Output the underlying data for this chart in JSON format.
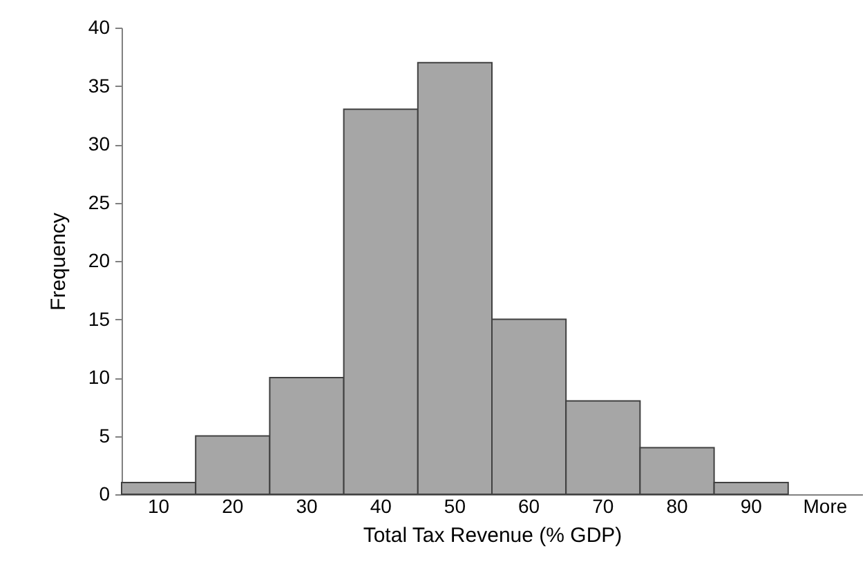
{
  "chart_data": {
    "type": "bar",
    "categories": [
      "10",
      "20",
      "30",
      "40",
      "50",
      "60",
      "70",
      "80",
      "90",
      "More"
    ],
    "values": [
      1,
      5,
      10,
      33,
      37,
      15,
      8,
      4,
      1,
      0
    ],
    "color": "#a6a6a6",
    "xlabel": "Total Tax Revenue (% GDP)",
    "ylabel": "Frequency",
    "ylim": [
      0,
      40
    ],
    "yticks": [
      0,
      5,
      10,
      15,
      20,
      25,
      30,
      35,
      40
    ],
    "grid": false
  }
}
